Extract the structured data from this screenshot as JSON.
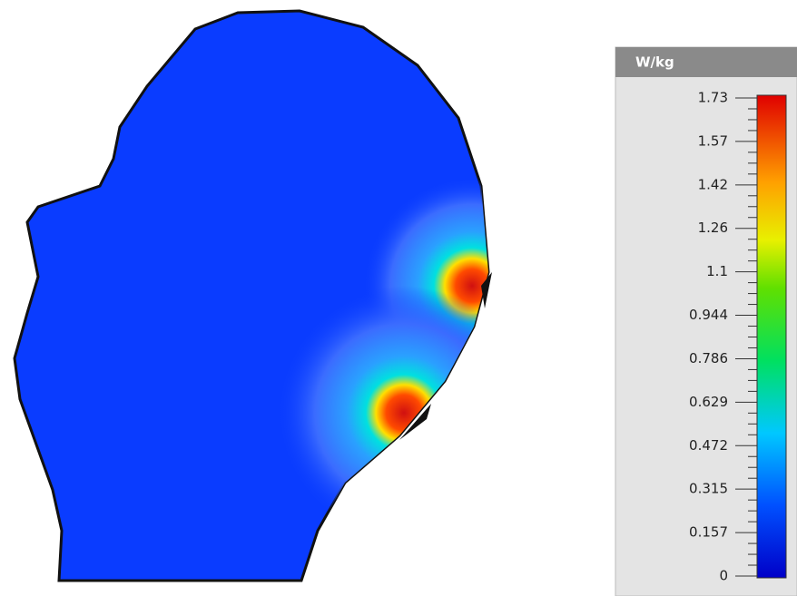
{
  "colorbar": {
    "title": "W/kg",
    "ticks": [
      "1.73",
      "1.57",
      "1.42",
      "1.26",
      "1.1",
      "0.944",
      "0.786",
      "0.629",
      "0.472",
      "0.315",
      "0.157",
      "0"
    ]
  }
}
